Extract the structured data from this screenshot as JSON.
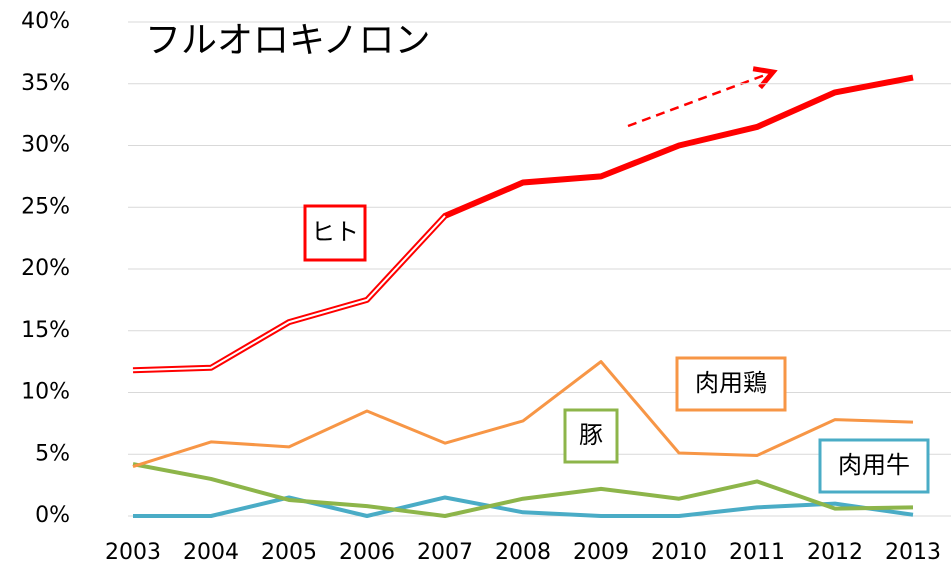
{
  "chart_data": {
    "type": "line",
    "title": "フルオロキノロン",
    "categories": [
      "2003",
      "2004",
      "2005",
      "2006",
      "2007",
      "2008",
      "2009",
      "2010",
      "2011",
      "2012",
      "2013"
    ],
    "series": [
      {
        "name": "ヒト",
        "color": "#ff0000",
        "values": [
          11.8,
          12.0,
          15.7,
          17.5,
          24.3,
          27.0,
          27.5,
          30.0,
          31.5,
          34.3,
          35.5
        ]
      },
      {
        "name": "肉用鶏",
        "color": "#f79646",
        "values": [
          4.0,
          6.0,
          5.6,
          8.5,
          5.9,
          7.7,
          12.5,
          5.1,
          4.9,
          7.8,
          7.6
        ]
      },
      {
        "name": "豚",
        "color": "#8db54a",
        "values": [
          4.2,
          3.0,
          1.3,
          0.8,
          0.0,
          1.4,
          2.2,
          1.4,
          2.8,
          0.6,
          0.7
        ]
      },
      {
        "name": "肉用牛",
        "color": "#4aacc6",
        "values": [
          0.0,
          0.0,
          1.5,
          0.0,
          1.5,
          0.3,
          0.0,
          0.0,
          0.7,
          1.0,
          0.1
        ]
      }
    ],
    "ylim": [
      0,
      40
    ],
    "yticks": [
      {
        "value": 0,
        "label": "0%"
      },
      {
        "value": 5,
        "label": "5%"
      },
      {
        "value": 10,
        "label": "10%"
      },
      {
        "value": 15,
        "label": "15%"
      },
      {
        "value": 20,
        "label": "20%"
      },
      {
        "value": 25,
        "label": "25%"
      },
      {
        "value": 30,
        "label": "30%"
      },
      {
        "value": 35,
        "label": "35%"
      },
      {
        "value": 40,
        "label": "40%"
      }
    ],
    "grid": true
  }
}
